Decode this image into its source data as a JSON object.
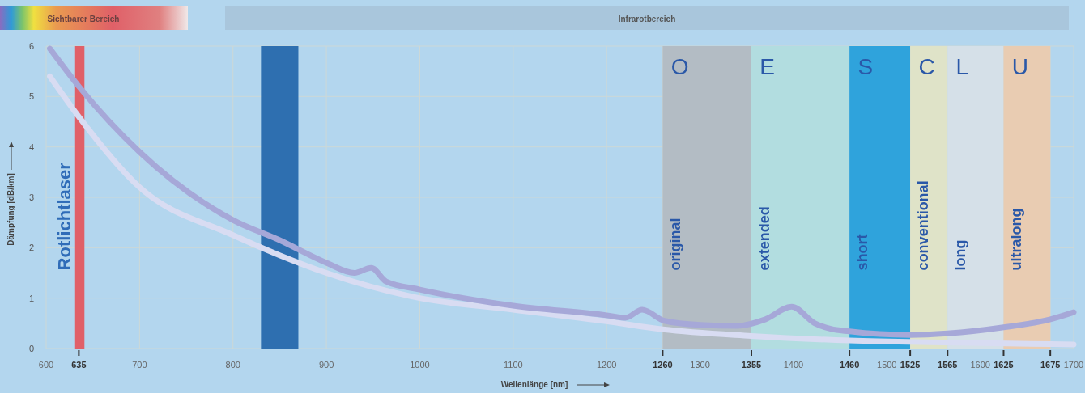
{
  "chart_data": {
    "type": "line",
    "xlabel": "Wellenlänge [nm]",
    "ylabel": "Dämpfung [dB/km]",
    "xlim": [
      600,
      1700
    ],
    "ylim": [
      0,
      6
    ],
    "xticks": [
      600,
      635,
      700,
      800,
      900,
      1000,
      1100,
      1200,
      1260,
      1300,
      1355,
      1400,
      1460,
      1500,
      1525,
      1565,
      1600,
      1625,
      1675,
      1700
    ],
    "yticks": [
      0,
      1,
      2,
      3,
      4,
      5,
      6
    ],
    "grid": true,
    "series": [
      {
        "color": "#d8dcf2",
        "x": [
          604,
          635,
          700,
          800,
          850,
          900,
          1000,
          1100,
          1200,
          1260,
          1355,
          1460,
          1565,
          1700
        ],
        "values": [
          5.4,
          4.6,
          3.2,
          2.25,
          1.85,
          1.5,
          1.0,
          0.77,
          0.54,
          0.38,
          0.25,
          0.16,
          0.12,
          0.08
        ]
      },
      {
        "color": "#a6a8d8",
        "x": [
          604,
          635,
          700,
          800,
          850,
          900,
          930,
          948,
          964,
          1000,
          1100,
          1200,
          1220,
          1238,
          1262,
          1300,
          1340,
          1370,
          1398,
          1423,
          1440,
          1460,
          1525,
          1565,
          1625,
          1675,
          1700
        ],
        "values": [
          5.95,
          5.2,
          3.9,
          2.55,
          2.15,
          1.7,
          1.5,
          1.6,
          1.33,
          1.17,
          0.85,
          0.66,
          0.61,
          0.77,
          0.55,
          0.47,
          0.45,
          0.58,
          0.83,
          0.5,
          0.39,
          0.34,
          0.27,
          0.3,
          0.42,
          0.58,
          0.72
        ]
      }
    ],
    "bands": [
      {
        "axis": "x",
        "from": 631,
        "to": 641,
        "label": "Rotlichtlaser",
        "color": "#e06068"
      },
      {
        "axis": "x",
        "from": 830,
        "to": 870,
        "color": "#2e6fb0"
      },
      {
        "axis": "x",
        "from": 1260,
        "to": 1355,
        "label": "original",
        "color": "#b3bcc4"
      },
      {
        "axis": "x",
        "from": 1355,
        "to": 1460,
        "label": "extended",
        "color": "#b2dde0"
      },
      {
        "axis": "x",
        "from": 1460,
        "to": 1525,
        "label": "short",
        "color": "#2fa3dc"
      },
      {
        "axis": "x",
        "from": 1525,
        "to": 1565,
        "label": "conventional",
        "color": "#dfe3c8"
      },
      {
        "axis": "x",
        "from": 1565,
        "to": 1625,
        "label": "long",
        "color": "#d5e0e8"
      },
      {
        "axis": "x",
        "from": 1625,
        "to": 1675,
        "label": "ultralong",
        "color": "#e9ccb2"
      }
    ],
    "annotations": [
      "Sichtbarer Bereich",
      "Infrarotbereich",
      {
        "text": "O",
        "x": 1262,
        "y": 5.6
      },
      {
        "text": "E",
        "x": 1357,
        "y": 5.6
      },
      {
        "text": "S",
        "x": 1462,
        "y": 5.6
      },
      {
        "text": "C",
        "x": 1527,
        "y": 5.6
      },
      {
        "text": "L",
        "x": 1567,
        "y": 5.6
      },
      {
        "text": "U",
        "x": 1627,
        "y": 5.6
      }
    ]
  }
}
